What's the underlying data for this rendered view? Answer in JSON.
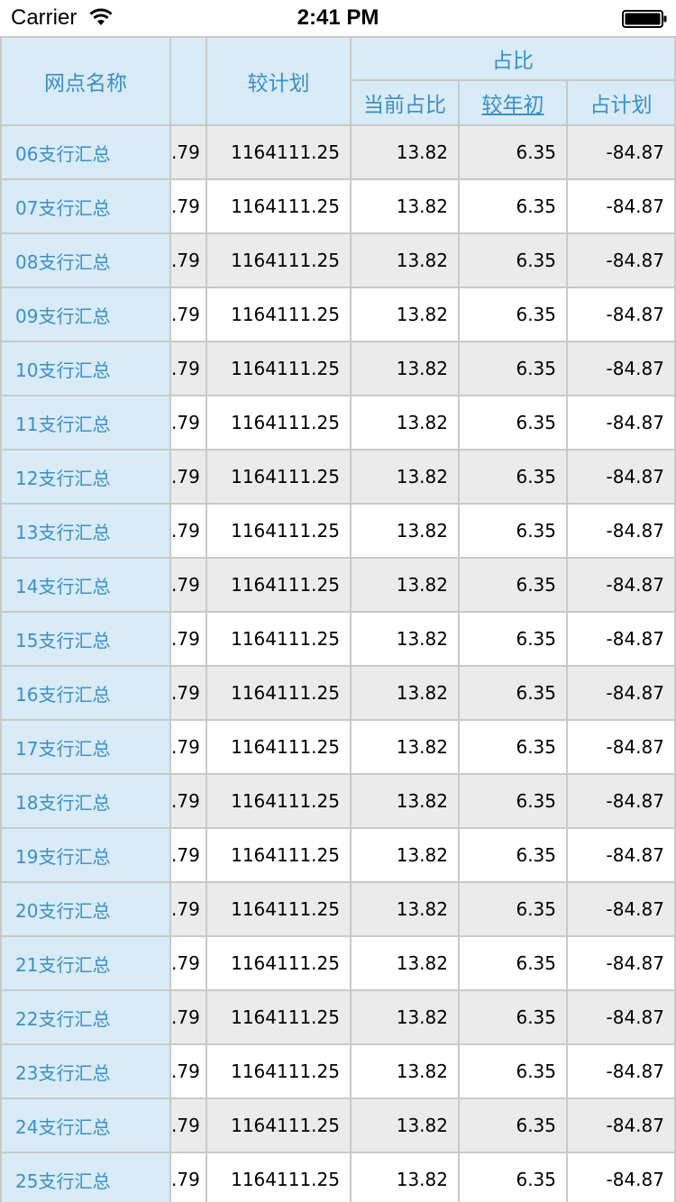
{
  "status_bar": {
    "carrier": "Carrier",
    "time": "2:41 PM"
  },
  "header": {
    "name_col": "网点名称",
    "partial_col": "",
    "plan_col": "较计划",
    "group_label": "占比",
    "sub_cols": [
      "当前占比",
      "较年初",
      "占计划"
    ]
  },
  "rows": [
    {
      "name": "06支行汇总",
      "partial": ".79",
      "plan": "1164111.25",
      "current": "13.82",
      "ytd": "6.35",
      "vs_plan": "-84.87"
    },
    {
      "name": "07支行汇总",
      "partial": ".79",
      "plan": "1164111.25",
      "current": "13.82",
      "ytd": "6.35",
      "vs_plan": "-84.87"
    },
    {
      "name": "08支行汇总",
      "partial": ".79",
      "plan": "1164111.25",
      "current": "13.82",
      "ytd": "6.35",
      "vs_plan": "-84.87"
    },
    {
      "name": "09支行汇总",
      "partial": ".79",
      "plan": "1164111.25",
      "current": "13.82",
      "ytd": "6.35",
      "vs_plan": "-84.87"
    },
    {
      "name": "10支行汇总",
      "partial": ".79",
      "plan": "1164111.25",
      "current": "13.82",
      "ytd": "6.35",
      "vs_plan": "-84.87"
    },
    {
      "name": "11支行汇总",
      "partial": ".79",
      "plan": "1164111.25",
      "current": "13.82",
      "ytd": "6.35",
      "vs_plan": "-84.87"
    },
    {
      "name": "12支行汇总",
      "partial": ".79",
      "plan": "1164111.25",
      "current": "13.82",
      "ytd": "6.35",
      "vs_plan": "-84.87"
    },
    {
      "name": "13支行汇总",
      "partial": ".79",
      "plan": "1164111.25",
      "current": "13.82",
      "ytd": "6.35",
      "vs_plan": "-84.87"
    },
    {
      "name": "14支行汇总",
      "partial": ".79",
      "plan": "1164111.25",
      "current": "13.82",
      "ytd": "6.35",
      "vs_plan": "-84.87"
    },
    {
      "name": "15支行汇总",
      "partial": ".79",
      "plan": "1164111.25",
      "current": "13.82",
      "ytd": "6.35",
      "vs_plan": "-84.87"
    },
    {
      "name": "16支行汇总",
      "partial": ".79",
      "plan": "1164111.25",
      "current": "13.82",
      "ytd": "6.35",
      "vs_plan": "-84.87"
    },
    {
      "name": "17支行汇总",
      "partial": ".79",
      "plan": "1164111.25",
      "current": "13.82",
      "ytd": "6.35",
      "vs_plan": "-84.87"
    },
    {
      "name": "18支行汇总",
      "partial": ".79",
      "plan": "1164111.25",
      "current": "13.82",
      "ytd": "6.35",
      "vs_plan": "-84.87"
    },
    {
      "name": "19支行汇总",
      "partial": ".79",
      "plan": "1164111.25",
      "current": "13.82",
      "ytd": "6.35",
      "vs_plan": "-84.87"
    },
    {
      "name": "20支行汇总",
      "partial": ".79",
      "plan": "1164111.25",
      "current": "13.82",
      "ytd": "6.35",
      "vs_plan": "-84.87"
    },
    {
      "name": "21支行汇总",
      "partial": ".79",
      "plan": "1164111.25",
      "current": "13.82",
      "ytd": "6.35",
      "vs_plan": "-84.87"
    },
    {
      "name": "22支行汇总",
      "partial": ".79",
      "plan": "1164111.25",
      "current": "13.82",
      "ytd": "6.35",
      "vs_plan": "-84.87"
    },
    {
      "name": "23支行汇总",
      "partial": ".79",
      "plan": "1164111.25",
      "current": "13.82",
      "ytd": "6.35",
      "vs_plan": "-84.87"
    },
    {
      "name": "24支行汇总",
      "partial": ".79",
      "plan": "1164111.25",
      "current": "13.82",
      "ytd": "6.35",
      "vs_plan": "-84.87"
    },
    {
      "name": "25支行汇总",
      "partial": ".79",
      "plan": "1164111.25",
      "current": "13.82",
      "ytd": "6.35",
      "vs_plan": "-84.87"
    }
  ],
  "colors": {
    "header_bg": "#d8ebf6",
    "header_text": "#3a8fc7",
    "row_alt_bg": "#ecebeb",
    "grid_line": "#c9c9c9"
  }
}
